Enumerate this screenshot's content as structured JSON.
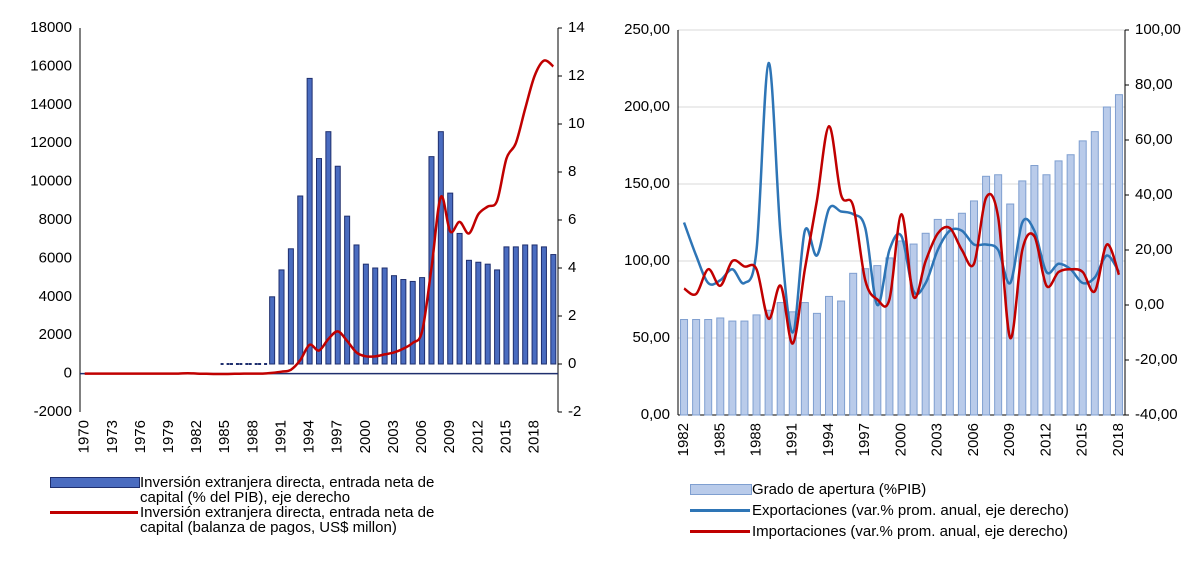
{
  "chart_data": [
    {
      "type": "combo",
      "categories": [
        "1970",
        null,
        null,
        "1973",
        null,
        null,
        "1976",
        null,
        null,
        "1979",
        null,
        null,
        "1982",
        null,
        null,
        "1985",
        null,
        null,
        "1988",
        null,
        null,
        "1991",
        null,
        null,
        "1994",
        null,
        null,
        "1997",
        null,
        null,
        "2000",
        null,
        null,
        "2003",
        null,
        null,
        "2006",
        null,
        null,
        "2009",
        null,
        null,
        "2012",
        null,
        null,
        "2015",
        null,
        null,
        "2018",
        null,
        null
      ],
      "ylim": [
        -2000,
        18000
      ],
      "yticks": [
        -2000,
        0,
        2000,
        4000,
        6000,
        8000,
        10000,
        12000,
        14000,
        16000,
        18000
      ],
      "y2lim": [
        -2,
        14
      ],
      "y2ticks": [
        -2,
        0,
        2,
        4,
        6,
        8,
        10,
        12,
        14
      ],
      "grid": false,
      "series": [
        {
          "name": "Inversión extranjera directa, entrada neta de capital (% del PIB), eje derecho",
          "type": "bar",
          "axis": "y2",
          "color": "#4a6cc0",
          "values": [
            null,
            null,
            null,
            null,
            null,
            null,
            null,
            null,
            null,
            null,
            null,
            null,
            null,
            null,
            null,
            0,
            0,
            0,
            0,
            0,
            2.8,
            3.92,
            4.8,
            7.0,
            11.9,
            8.56,
            9.68,
            8.24,
            6.16,
            4.96,
            4.16,
            4.0,
            4.0,
            3.68,
            3.52,
            3.44,
            3.6,
            8.64,
            9.68,
            7.12,
            5.44,
            4.32,
            4.24,
            4.16,
            3.92,
            4.88,
            4.88,
            4.96,
            4.96,
            4.88,
            4.56
          ]
        },
        {
          "name": "Inversión extranjera directa, entrada neta de capital (balanza de pagos, US$ millon)",
          "type": "line",
          "color": "#c00000",
          "values": [
            0,
            0,
            0,
            0,
            0,
            0,
            0,
            0,
            0,
            0,
            0,
            20,
            0,
            -10,
            -20,
            -20,
            -10,
            0,
            0,
            0,
            40,
            100,
            200,
            700,
            1500,
            1200,
            1800,
            2200,
            1700,
            1100,
            900,
            900,
            1000,
            1100,
            1300,
            1600,
            2200,
            5500,
            9200,
            7400,
            7900,
            7300,
            8300,
            8700,
            9000,
            11200,
            12000,
            13800,
            15500,
            16300,
            16000
          ]
        }
      ]
    },
    {
      "type": "combo",
      "categories": [
        "1982",
        null,
        null,
        "1985",
        null,
        null,
        "1988",
        null,
        null,
        "1991",
        null,
        null,
        "1994",
        null,
        null,
        "1997",
        null,
        null,
        "2000",
        null,
        null,
        "2003",
        null,
        null,
        "2006",
        null,
        null,
        "2009",
        null,
        null,
        "2012",
        null,
        null,
        "2015",
        null,
        null,
        "2018"
      ],
      "ylim": [
        0,
        250
      ],
      "yticks": [
        {
          "value": 0,
          "label": "0,00"
        },
        {
          "value": 50,
          "label": "50,00"
        },
        {
          "value": 100,
          "label": "100,00"
        },
        {
          "value": 150,
          "label": "150,00"
        },
        {
          "value": 200,
          "label": "200,00"
        },
        {
          "value": 250,
          "label": "250,00"
        }
      ],
      "y2lim": [
        -40,
        100
      ],
      "y2ticks": [
        {
          "value": -40,
          "label": "-40,00"
        },
        {
          "value": -20,
          "label": "-20,00"
        },
        {
          "value": 0,
          "label": "0,00"
        },
        {
          "value": 20,
          "label": "20,00"
        },
        {
          "value": 40,
          "label": "40,00"
        },
        {
          "value": 60,
          "label": "60,00"
        },
        {
          "value": 80,
          "label": "80,00"
        },
        {
          "value": 100,
          "label": "100,00"
        }
      ],
      "grid": true,
      "series": [
        {
          "name": "Grado de apertura (%PIB)",
          "type": "bar",
          "color": "#b9cbea",
          "values": [
            62,
            62,
            62,
            63,
            61,
            61,
            65,
            68,
            73,
            67,
            73,
            66,
            77,
            74,
            92,
            95,
            97,
            102,
            113,
            111,
            118,
            127,
            127,
            131,
            139,
            155,
            156,
            137,
            152,
            162,
            156,
            165,
            169,
            178,
            184,
            200,
            208
          ]
        },
        {
          "name": "Exportaciones (var.% prom. anual, eje derecho)",
          "type": "line",
          "axis": "y2",
          "color": "#2e75b6",
          "values": [
            30,
            18,
            8,
            9,
            13,
            8,
            20,
            88,
            25,
            -10,
            27,
            18,
            35,
            34,
            33,
            28,
            0,
            20,
            25,
            5,
            8,
            20,
            27,
            27,
            22,
            22,
            20,
            8,
            30,
            27,
            12,
            15,
            13,
            8,
            10,
            18,
            12
          ]
        },
        {
          "name": "Importaciones (var.% prom. anual, eje derecho)",
          "type": "line",
          "axis": "y2",
          "color": "#c00000",
          "values": [
            6,
            4,
            13,
            7,
            16,
            14,
            13,
            -5,
            7,
            -14,
            13,
            38,
            65,
            40,
            36,
            9,
            2,
            2,
            33,
            3,
            16,
            26,
            28,
            20,
            15,
            39,
            32,
            -12,
            20,
            25,
            7,
            12,
            13,
            12,
            5,
            22,
            11
          ]
        }
      ]
    }
  ]
}
